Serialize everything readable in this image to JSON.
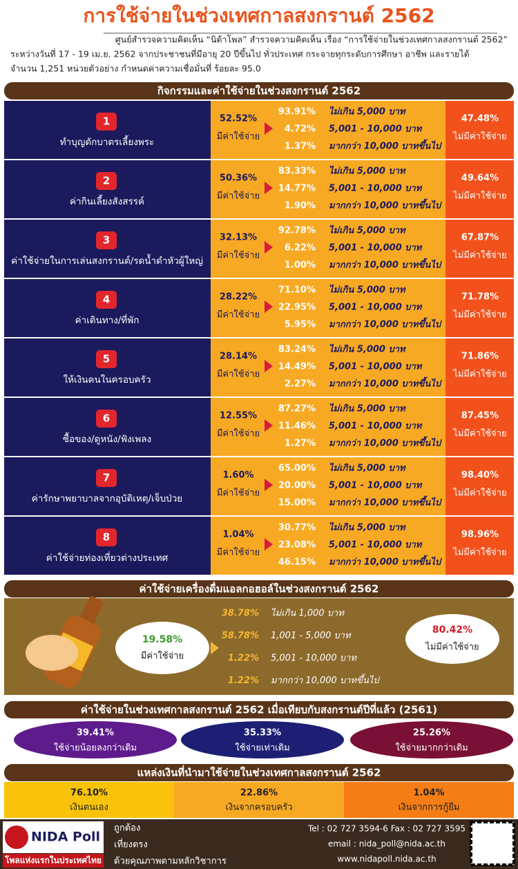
{
  "header": {
    "title": "การใช้จ่ายในช่วงเทศกาลสงกรานต์ 2562",
    "intro": [
      "ศูนย์สำรวจความคิดเห็น “นิด้าโพล” สำรวจความคิดเห็น เรื่อง “การใช้จ่ายในช่วงเทศกาลสงกรานต์ 2562”",
      "ระหว่างวันที่ 17 - 19 เม.ย. 2562 จากประชาชนที่มีอายุ 20 ปีขึ้นไป ทั่วประเทศ กระจายทุกระดับการศึกษา อาชีพ และรายได้",
      "จำนวน 1,251 หน่วยตัวอย่าง กำหนดค่าความเชื่อมั่นที่ ร้อยละ 95.0"
    ]
  },
  "activities": {
    "title": "กิจกรรมและค่าใช้จ่ายในช่วงสงกรานต์ 2562",
    "rows": [
      {
        "number": "1",
        "label": "ทำบุญตักบาตรเลี้ยงพระ",
        "spend_pct": "52.52%",
        "spend_label": "มีค่าใช้จ่าย",
        "breakdown": [
          {
            "pct": "93.91%",
            "range": "ไม่เกิน 5,000 บาท"
          },
          {
            "pct": "4.72%",
            "range": "5,001 - 10,000 บาท"
          },
          {
            "pct": "1.37%",
            "range": "มากกว่า 10,000 บาทขึ้นไป"
          }
        ],
        "none_pct": "47.48%",
        "none_label": "ไม่มีค่าใช้จ่าย"
      },
      {
        "number": "2",
        "label": "ค่ากินเลี้ยงสังสรรค์",
        "spend_pct": "50.36%",
        "spend_label": "มีค่าใช้จ่าย",
        "breakdown": [
          {
            "pct": "83.33%",
            "range": "ไม่เกิน 5,000 บาท"
          },
          {
            "pct": "14.77%",
            "range": "5,001 - 10,000 บาท"
          },
          {
            "pct": "1.90%",
            "range": "มากกว่า 10,000 บาทขึ้นไป"
          }
        ],
        "none_pct": "49.64%",
        "none_label": "ไม่มีค่าใช้จ่าย"
      },
      {
        "number": "3",
        "label": "ค่าใช้จ่ายในการเล่นสงกรานต์/รดน้ำดำหัวผู้ใหญ่",
        "spend_pct": "32.13%",
        "spend_label": "มีค่าใช้จ่าย",
        "breakdown": [
          {
            "pct": "92.78%",
            "range": "ไม่เกิน 5,000 บาท"
          },
          {
            "pct": "6.22%",
            "range": "5,001 - 10,000 บาท"
          },
          {
            "pct": "1.00%",
            "range": "มากกว่า 10,000 บาทขึ้นไป"
          }
        ],
        "none_pct": "67.87%",
        "none_label": "ไม่มีค่าใช้จ่าย"
      },
      {
        "number": "4",
        "label": "ค่าเดินทาง/ที่พัก",
        "spend_pct": "28.22%",
        "spend_label": "มีค่าใช้จ่าย",
        "breakdown": [
          {
            "pct": "71.10%",
            "range": "ไม่เกิน 5,000 บาท"
          },
          {
            "pct": "22.95%",
            "range": "5,001 - 10,000 บาท"
          },
          {
            "pct": "5.95%",
            "range": "มากกว่า 10,000 บาทขึ้นไป"
          }
        ],
        "none_pct": "71.78%",
        "none_label": "ไม่มีค่าใช้จ่าย"
      },
      {
        "number": "5",
        "label": "ให้เงินคนในครอบครัว",
        "spend_pct": "28.14%",
        "spend_label": "มีค่าใช้จ่าย",
        "breakdown": [
          {
            "pct": "83.24%",
            "range": "ไม่เกิน 5,000 บาท"
          },
          {
            "pct": "14.49%",
            "range": "5,001 - 10,000 บาท"
          },
          {
            "pct": "2.27%",
            "range": "มากกว่า 10,000 บาทขึ้นไป"
          }
        ],
        "none_pct": "71.86%",
        "none_label": "ไม่มีค่าใช้จ่าย"
      },
      {
        "number": "6",
        "label": "ซื้อของ/ดูหนัง/ฟังเพลง",
        "spend_pct": "12.55%",
        "spend_label": "มีค่าใช้จ่าย",
        "breakdown": [
          {
            "pct": "87.27%",
            "range": "ไม่เกิน 5,000 บาท"
          },
          {
            "pct": "11.46%",
            "range": "5,001 - 10,000 บาท"
          },
          {
            "pct": "1.27%",
            "range": "มากกว่า 10,000 บาทขึ้นไป"
          }
        ],
        "none_pct": "87.45%",
        "none_label": "ไม่มีค่าใช้จ่าย"
      },
      {
        "number": "7",
        "label": "ค่ารักษาพยาบาลจากอุบัติเหตุ/เจ็บป่วย",
        "spend_pct": "1.60%",
        "spend_label": "มีค่าใช้จ่าย",
        "breakdown": [
          {
            "pct": "65.00%",
            "range": "ไม่เกิน 5,000 บาท"
          },
          {
            "pct": "20.00%",
            "range": "5,001 - 10,000 บาท"
          },
          {
            "pct": "15.00%",
            "range": "มากกว่า 10,000 บาทขึ้นไป"
          }
        ],
        "none_pct": "98.40%",
        "none_label": "ไม่มีค่าใช้จ่าย"
      },
      {
        "number": "8",
        "label": "ค่าใช้จ่ายท่องเที่ยวต่างประเทศ",
        "spend_pct": "1.04%",
        "spend_label": "มีค่าใช้จ่าย",
        "breakdown": [
          {
            "pct": "30.77%",
            "range": "ไม่เกิน 5,000 บาท"
          },
          {
            "pct": "23.08%",
            "range": "5,001 - 10,000 บาท"
          },
          {
            "pct": "46.15%",
            "range": "มากกว่า 10,000 บาทขึ้นไป"
          }
        ],
        "none_pct": "98.96%",
        "none_label": "ไม่มีค่าใช้จ่าย"
      }
    ]
  },
  "alcohol": {
    "title": "ค่าใช้จ่ายเครื่องดื่มแอลกอฮอล์ในช่วงสงกรานต์ 2562",
    "spend_pct": "19.58%",
    "spend_label": "มีค่าใช้จ่าย",
    "breakdown": [
      {
        "pct": "38.78%",
        "range": "ไม่เกิน 1,000 บาท"
      },
      {
        "pct": "58.78%",
        "range": "1,001 - 5,000 บาท"
      },
      {
        "pct": "1.22%",
        "range": "5,001 - 10,000 บาท"
      },
      {
        "pct": "1.22%",
        "range": "มากกว่า 10,000 บาทขึ้นไป"
      }
    ],
    "none_pct": "80.42%",
    "none_label": "ไม่มีค่าใช้จ่าย"
  },
  "comparison": {
    "title": "ค่าใช้จ่ายในช่วงเทศกาลสงกรานต์ 2562 เมื่อเทียบกับสงกรานต์ปีที่แล้ว (2561)",
    "items": [
      {
        "pct": "39.41%",
        "label": "ใช้จ่ายน้อยลงกว่าเดิม"
      },
      {
        "pct": "35.33%",
        "label": "ใช้จ่ายเท่าเดิม"
      },
      {
        "pct": "25.26%",
        "label": "ใช้จ่ายมากกว่าเดิม"
      }
    ]
  },
  "sources": {
    "title": "แหล่งเงินที่นำมาใช้จ่ายในช่วงเทศกาลสงกรานต์ 2562",
    "items": [
      {
        "pct": "76.10%",
        "label": "เงินตนเอง"
      },
      {
        "pct": "22.86%",
        "label": "เงินจากครอบครัว"
      },
      {
        "pct": "1.04%",
        "label": "เงินจากการกู้ยืม"
      }
    ]
  },
  "footer": {
    "logo": "NIDA Poll",
    "tagline": "โพลแห่งแรกในประเทศไทย",
    "mottos": [
      "ถูกต้อง",
      "เที่ยงตรง",
      "ด้วยคุณภาพตามหลักวิชาการ"
    ],
    "contact": [
      "Tel : 02 727 3594-6 Fax : 02 727 3595",
      "email : nida_poll@nida.ac.th",
      "www.nidapoll.nida.ac.th"
    ]
  }
}
